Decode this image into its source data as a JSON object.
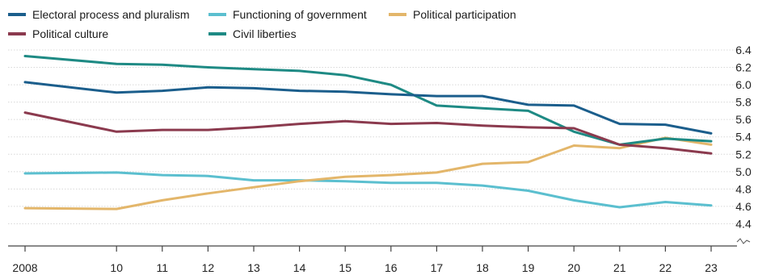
{
  "chart_data": {
    "type": "line",
    "title": "",
    "xlabel": "",
    "ylabel": "",
    "x": [
      2008,
      2010,
      2011,
      2012,
      2013,
      2014,
      2015,
      2016,
      2017,
      2018,
      2019,
      2020,
      2021,
      2022,
      2023
    ],
    "x_tick_labels": [
      "2008",
      "10",
      "11",
      "12",
      "13",
      "14",
      "15",
      "16",
      "17",
      "18",
      "19",
      "20",
      "21",
      "22",
      "23"
    ],
    "ylim": [
      4.2,
      6.4
    ],
    "y_ticks": [
      4.4,
      4.6,
      4.8,
      5.0,
      5.2,
      5.4,
      5.6,
      5.8,
      6.0,
      6.2,
      6.4
    ],
    "y_tick_labels": [
      "4.4",
      "4.6",
      "4.8",
      "5.0",
      "5.2",
      "5.4",
      "5.6",
      "5.8",
      "6.0",
      "6.2",
      "6.4"
    ],
    "y_axis_position": "right",
    "y_axis_break": true,
    "grid": "horizontal",
    "legend_position": "top-left",
    "series": [
      {
        "name": "Electoral process and pluralism",
        "color": "#1b5e8c",
        "values": [
          6.03,
          5.91,
          5.93,
          5.97,
          5.96,
          5.93,
          5.92,
          5.89,
          5.87,
          5.87,
          5.77,
          5.76,
          5.55,
          5.54,
          5.44
        ]
      },
      {
        "name": "Political culture",
        "color": "#8b3a4e",
        "values": [
          5.68,
          5.46,
          5.48,
          5.48,
          5.51,
          5.55,
          5.58,
          5.55,
          5.56,
          5.53,
          5.51,
          5.5,
          5.31,
          5.27,
          5.21
        ]
      },
      {
        "name": "Functioning of government",
        "color": "#5bbfcf",
        "values": [
          4.98,
          4.99,
          4.96,
          4.95,
          4.9,
          4.9,
          4.89,
          4.87,
          4.87,
          4.84,
          4.78,
          4.67,
          4.59,
          4.65,
          4.61
        ]
      },
      {
        "name": "Civil liberties",
        "color": "#1e8a84",
        "values": [
          6.33,
          6.24,
          6.23,
          6.2,
          6.18,
          6.16,
          6.11,
          6.0,
          5.76,
          5.73,
          5.7,
          5.46,
          5.31,
          5.38,
          5.35
        ]
      },
      {
        "name": "Political participation",
        "color": "#e3b66a",
        "values": [
          4.58,
          4.57,
          4.67,
          4.75,
          4.82,
          4.89,
          4.94,
          4.96,
          4.99,
          5.09,
          5.11,
          5.3,
          5.27,
          5.39,
          5.31
        ]
      }
    ],
    "legend": [
      {
        "label": "Electoral process and pluralism",
        "color": "#1b5e8c"
      },
      {
        "label": "Functioning of government",
        "color": "#5bbfcf"
      },
      {
        "label": "Political participation",
        "color": "#e3b66a"
      },
      {
        "label": "Political culture",
        "color": "#8b3a4e"
      },
      {
        "label": "Civil liberties",
        "color": "#1e8a84"
      }
    ]
  }
}
